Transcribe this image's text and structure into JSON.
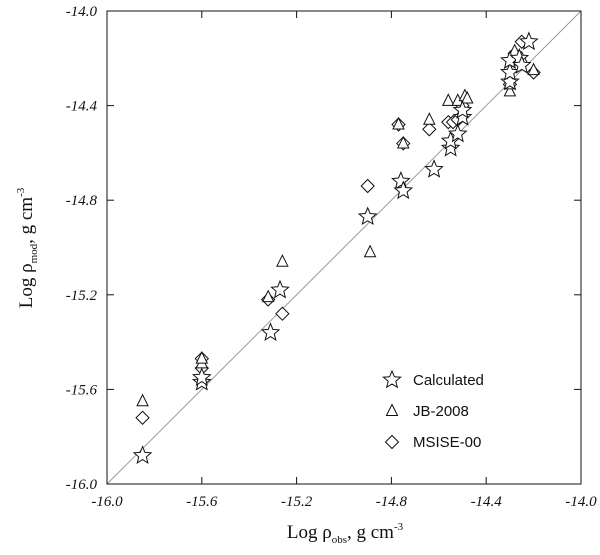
{
  "chart_data": {
    "type": "scatter",
    "title": "",
    "xlabel": {
      "main": "Log ρ",
      "sub": "obs",
      "unit": ", g cm",
      "sup": "-3"
    },
    "ylabel": {
      "main": "Log ρ",
      "sub": "mod",
      "unit": ", g cm",
      "sup": "-3"
    },
    "xlim": [
      -16.0,
      -14.0
    ],
    "ylim": [
      -16.0,
      -14.0
    ],
    "xticks": [
      -16.0,
      -15.6,
      -15.2,
      -14.8,
      -14.4,
      -14.0
    ],
    "yticks": [
      -16.0,
      -15.6,
      -15.2,
      -14.8,
      -14.4,
      -14.0
    ],
    "xtick_labels": [
      "-16.0",
      "-15.6",
      "-15.2",
      "-14.8",
      "-14.4",
      "-14.0"
    ],
    "ytick_labels": [
      "-16.0",
      "-15.6",
      "-15.2",
      "-14.8",
      "-14.4",
      "-14.0"
    ],
    "reference_line": "y = x",
    "grid": false,
    "legend_position": "bottom-right",
    "series": [
      {
        "name": "Calculated",
        "marker": "star",
        "points": [
          [
            -15.85,
            -15.88
          ],
          [
            -15.6,
            -15.57
          ],
          [
            -15.6,
            -15.55
          ],
          [
            -15.31,
            -15.36
          ],
          [
            -15.27,
            -15.18
          ],
          [
            -14.9,
            -14.87
          ],
          [
            -14.76,
            -14.72
          ],
          [
            -14.75,
            -14.76
          ],
          [
            -14.62,
            -14.67
          ],
          [
            -14.55,
            -14.58
          ],
          [
            -14.55,
            -14.55
          ],
          [
            -14.52,
            -14.52
          ],
          [
            -14.5,
            -14.45
          ],
          [
            -14.5,
            -14.42
          ],
          [
            -14.3,
            -14.3
          ],
          [
            -14.3,
            -14.26
          ],
          [
            -14.3,
            -14.21
          ],
          [
            -14.26,
            -14.2
          ],
          [
            -14.25,
            -14.23
          ],
          [
            -14.22,
            -14.13
          ]
        ]
      },
      {
        "name": "JB-2008",
        "marker": "triangle",
        "points": [
          [
            -15.85,
            -15.65
          ],
          [
            -15.6,
            -15.49
          ],
          [
            -15.6,
            -15.47
          ],
          [
            -15.32,
            -15.21
          ],
          [
            -15.26,
            -15.06
          ],
          [
            -14.89,
            -15.02
          ],
          [
            -14.77,
            -14.48
          ],
          [
            -14.75,
            -14.56
          ],
          [
            -14.64,
            -14.46
          ],
          [
            -14.56,
            -14.38
          ],
          [
            -14.52,
            -14.38
          ],
          [
            -14.49,
            -14.36
          ],
          [
            -14.48,
            -14.37
          ],
          [
            -14.3,
            -14.34
          ],
          [
            -14.3,
            -14.31
          ],
          [
            -14.28,
            -14.17
          ],
          [
            -14.25,
            -14.2
          ],
          [
            -14.2,
            -14.25
          ]
        ]
      },
      {
        "name": "MSISE-00",
        "marker": "diamond",
        "points": [
          [
            -15.85,
            -15.72
          ],
          [
            -15.6,
            -15.51
          ],
          [
            -15.6,
            -15.47
          ],
          [
            -15.32,
            -15.22
          ],
          [
            -15.26,
            -15.28
          ],
          [
            -14.9,
            -14.74
          ],
          [
            -14.77,
            -14.48
          ],
          [
            -14.75,
            -14.56
          ],
          [
            -14.64,
            -14.5
          ],
          [
            -14.56,
            -14.47
          ],
          [
            -14.54,
            -14.47
          ],
          [
            -14.52,
            -14.46
          ],
          [
            -14.5,
            -14.4
          ],
          [
            -14.3,
            -14.31
          ],
          [
            -14.28,
            -14.18
          ],
          [
            -14.25,
            -14.13
          ],
          [
            -14.2,
            -14.26
          ]
        ]
      }
    ]
  }
}
